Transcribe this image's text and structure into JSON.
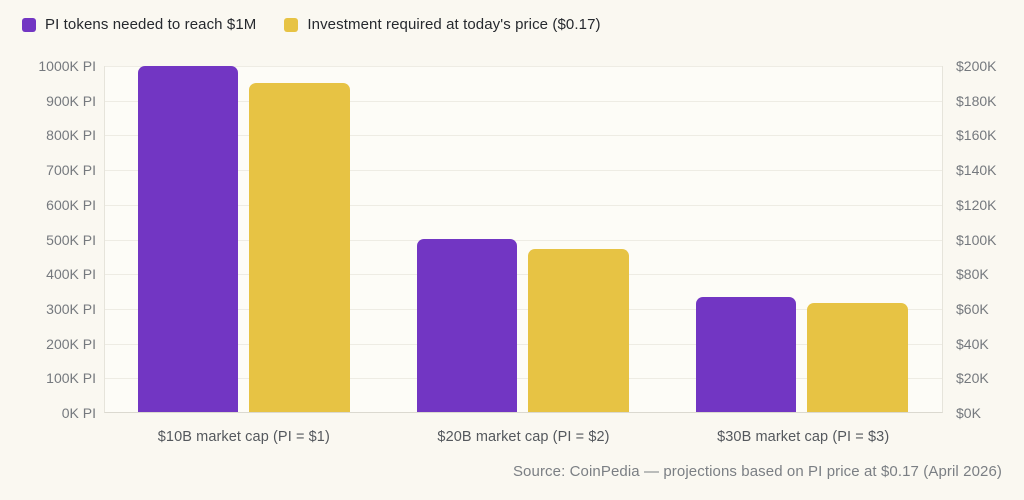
{
  "legend": {
    "items": [
      {
        "label": "PI tokens needed to reach $1M",
        "color": "#7236c3"
      },
      {
        "label": "Investment required at today's price ($0.17)",
        "color": "#e7c344"
      }
    ]
  },
  "source_note": "Source: CoinPedia — projections based on PI price at $0.17 (April 2026)",
  "chart_data": {
    "type": "bar",
    "title": "",
    "categories": [
      "$10B market cap (PI = $1)",
      "$20B market cap (PI = $2)",
      "$30B market cap (PI = $3)"
    ],
    "series": [
      {
        "name": "PI tokens needed to reach $1M",
        "axis": "left",
        "color": "#7236c3",
        "values": [
          1000000,
          500000,
          333333
        ]
      },
      {
        "name": "Investment required at today's price ($0.17)",
        "axis": "right",
        "color": "#e7c344",
        "values": [
          190000,
          94000,
          63000
        ]
      }
    ],
    "left_axis": {
      "ticks": [
        "0K PI",
        "100K PI",
        "200K PI",
        "300K PI",
        "400K PI",
        "500K PI",
        "600K PI",
        "700K PI",
        "800K PI",
        "900K PI",
        "1000K PI"
      ],
      "min": 0,
      "max": 1000000
    },
    "right_axis": {
      "ticks": [
        "$0K",
        "$20K",
        "$40K",
        "$60K",
        "$80K",
        "$100K",
        "$120K",
        "$140K",
        "$160K",
        "$180K",
        "$200K"
      ],
      "min": 0,
      "max": 200000
    },
    "grid": true,
    "legend_position": "top-left"
  }
}
